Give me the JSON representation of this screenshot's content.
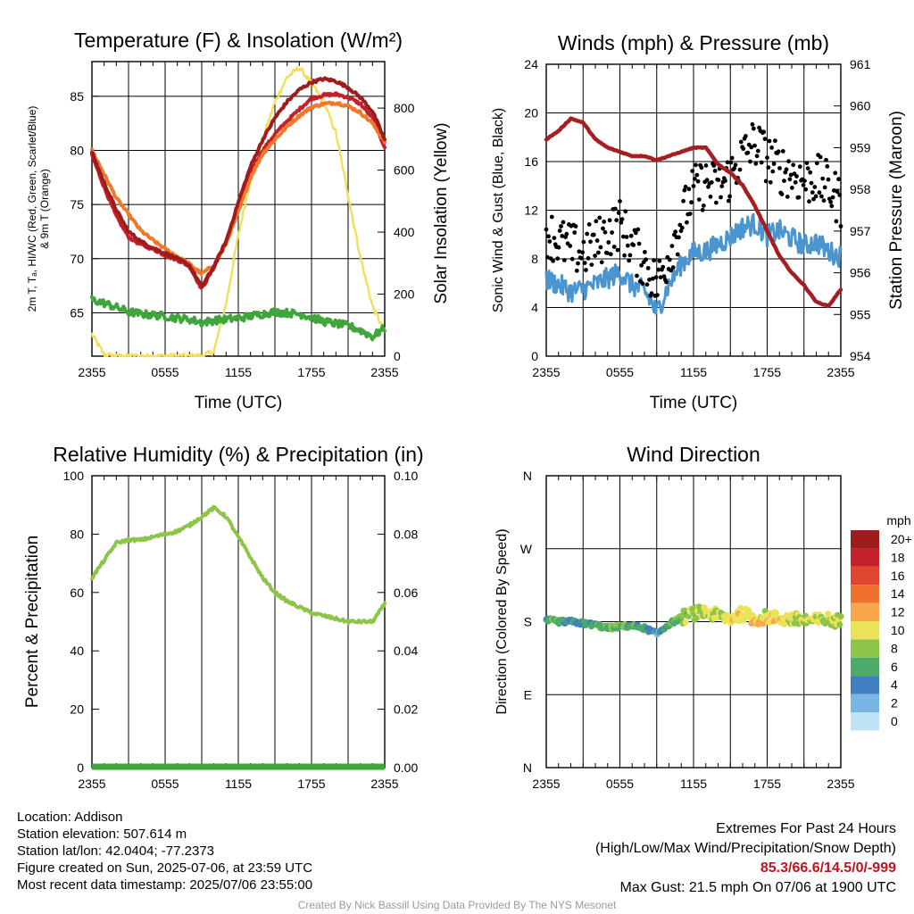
{
  "chart_data": [
    {
      "type": "line",
      "title": "Temperature (F) & Insolation (W/m²)",
      "xlabel": "Time (UTC)",
      "ylabel_lines": [
        "2m T, Tₐ, HI/WC (Red, Green, Scarlet/Blue)",
        "& 9m T (Orange)"
      ],
      "ylabel2": "Solar Insolation (Yellow)",
      "xticks": [
        "2355",
        "0555",
        "1155",
        "1755",
        "2355"
      ],
      "yticks": [
        65,
        70,
        75,
        80,
        85
      ],
      "y2ticks": [
        0,
        200,
        400,
        600,
        800
      ],
      "ylim": [
        61,
        88.2
      ],
      "y2lim": [
        0,
        950
      ],
      "x": [
        0,
        1,
        2,
        3,
        4,
        5,
        6,
        7,
        8,
        9,
        10,
        11,
        12,
        13,
        14,
        15,
        16,
        17,
        18,
        19,
        20,
        21,
        22,
        23,
        24
      ],
      "series": [
        {
          "color": "#c4202a",
          "values": [
            79.6,
            76.6,
            73.9,
            72.0,
            71.3,
            70.9,
            70.3,
            69.9,
            69.3,
            67.2,
            69.2,
            71.5,
            75.0,
            78.0,
            80.0,
            81.5,
            82.7,
            83.8,
            84.8,
            85.1,
            85.2,
            84.9,
            84.3,
            83.0,
            80.3
          ]
        },
        {
          "color": "#f0782a",
          "values": [
            80.0,
            77.8,
            75.6,
            74.1,
            72.6,
            71.7,
            70.9,
            70.2,
            69.5,
            68.6,
            69.4,
            71.4,
            74.3,
            77.5,
            79.7,
            81.0,
            82.2,
            83.2,
            84.0,
            84.3,
            84.4,
            84.1,
            83.5,
            82.5,
            80.8
          ]
        },
        {
          "color": "#9e1c1c",
          "values": [
            79.8,
            77.0,
            74.5,
            72.5,
            71.6,
            71.0,
            70.5,
            70.0,
            69.4,
            67.4,
            69.3,
            71.6,
            75.2,
            78.5,
            81.0,
            83.0,
            84.5,
            85.6,
            86.3,
            86.6,
            86.4,
            85.8,
            84.9,
            83.6,
            81.0
          ]
        },
        {
          "color": "#3ea63a",
          "values": [
            66.2,
            65.9,
            65.5,
            65.1,
            64.9,
            64.8,
            64.7,
            64.5,
            64.4,
            64.1,
            64.3,
            64.4,
            64.5,
            64.7,
            64.9,
            65.1,
            65.0,
            64.9,
            64.6,
            64.2,
            64.0,
            63.8,
            63.4,
            62.8,
            63.6
          ]
        }
      ],
      "insolation": {
        "color": "#f4df5a",
        "values": [
          70,
          5,
          0,
          0,
          0,
          0,
          0,
          0,
          0,
          0,
          15,
          170,
          390,
          570,
          700,
          820,
          900,
          930,
          880,
          820,
          720,
          520,
          320,
          160,
          80
        ]
      }
    },
    {
      "type": "line",
      "title": "Winds (mph) & Pressure (mb)",
      "xlabel": "Time (UTC)",
      "ylabel": "Sonic Wind & Gust (Blue, Black)",
      "ylabel2": "Station Pressure (Maroon)",
      "xticks": [
        "2355",
        "0555",
        "1155",
        "1755",
        "2355"
      ],
      "yticks": [
        0,
        4,
        8,
        12,
        16,
        20,
        24
      ],
      "y2ticks": [
        954,
        955,
        956,
        957,
        958,
        959,
        960,
        961
      ],
      "ylim": [
        0,
        24
      ],
      "y2lim": [
        954,
        961
      ],
      "x": [
        0,
        1,
        2,
        3,
        4,
        5,
        6,
        7,
        8,
        9,
        10,
        11,
        12,
        13,
        14,
        15,
        16,
        17,
        18,
        19,
        20,
        21,
        22,
        23,
        24
      ],
      "wind": {
        "color": "#4a95d0",
        "values": [
          6.3,
          5.9,
          5.3,
          5.5,
          5.9,
          6.4,
          6.9,
          5.8,
          5.4,
          3.6,
          5.9,
          7.6,
          8.5,
          8.6,
          9.2,
          9.8,
          10.6,
          10.9,
          9.9,
          10.3,
          9.7,
          9.1,
          9.4,
          8.6,
          8.2
        ]
      },
      "gust": {
        "color": "#000000",
        "values": [
          10.3,
          9.4,
          8.9,
          8.5,
          9.2,
          10.1,
          10.9,
          9.0,
          7.7,
          5.8,
          8.4,
          11.2,
          13.6,
          14.2,
          13.8,
          14.8,
          16.4,
          17.6,
          16.3,
          15.4,
          15.0,
          14.4,
          14.6,
          13.9,
          12.6
        ]
      },
      "pressure": {
        "color": "#a51e22",
        "values": [
          959.2,
          959.4,
          959.7,
          959.6,
          959.2,
          959.0,
          958.9,
          958.8,
          958.8,
          958.7,
          958.8,
          958.9,
          959.0,
          959.0,
          958.6,
          958.4,
          958.1,
          957.6,
          957.0,
          956.4,
          956.0,
          955.7,
          955.3,
          955.2,
          955.6
        ]
      }
    },
    {
      "type": "line",
      "title": "Relative Humidity (%) & Precipitation (in)",
      "ylabel": "Percent & Precipitation",
      "xticks": [
        "2355",
        "0555",
        "1155",
        "1755",
        "2355"
      ],
      "yticks": [
        0,
        20,
        40,
        60,
        80,
        100
      ],
      "y2ticks": [
        "0.00",
        "0.02",
        "0.04",
        "0.06",
        "0.08",
        "0.10"
      ],
      "ylim": [
        0,
        100
      ],
      "y2lim": [
        0,
        0.1
      ],
      "x": [
        0,
        1,
        2,
        3,
        4,
        5,
        6,
        7,
        8,
        9,
        10,
        11,
        12,
        13,
        14,
        15,
        16,
        17,
        18,
        19,
        20,
        21,
        22,
        23,
        24
      ],
      "series": [
        {
          "color": "#8cc54a",
          "values": [
            65,
            71,
            77,
            78,
            78,
            79,
            80,
            81,
            83,
            86,
            89,
            86,
            79,
            72,
            65,
            60,
            57,
            55,
            53,
            52,
            51,
            50,
            50,
            50,
            56
          ]
        },
        {
          "color": "#3ea63a",
          "values": [
            0,
            0,
            0,
            0,
            0,
            0,
            0,
            0,
            0,
            0,
            0,
            0,
            0,
            0,
            0,
            0,
            0,
            0,
            0,
            0,
            0,
            0,
            0,
            0,
            0
          ]
        }
      ]
    },
    {
      "type": "scatter",
      "title": "Wind Direction",
      "ylabel": "Direction (Colored By Speed)",
      "xticks": [
        "2355",
        "0555",
        "1155",
        "1755",
        "2355"
      ],
      "yticks": [
        "N",
        "E",
        "S",
        "W",
        "N"
      ],
      "ylim": [
        0,
        360
      ],
      "x": [
        0,
        1,
        2,
        3,
        4,
        5,
        6,
        7,
        8,
        9,
        10,
        11,
        12,
        13,
        14,
        15,
        16,
        17,
        18,
        19,
        20,
        21,
        22,
        23,
        24
      ],
      "direction": [
        182,
        180,
        180,
        178,
        176,
        172,
        174,
        175,
        172,
        165,
        177,
        185,
        190,
        192,
        187,
        184,
        190,
        183,
        186,
        184,
        183,
        182,
        181,
        183,
        180
      ],
      "speed": [
        6.3,
        5.9,
        5.3,
        5.5,
        5.9,
        6.4,
        6.9,
        5.8,
        5.4,
        3.6,
        5.9,
        7.6,
        8.5,
        8.6,
        9.2,
        9.8,
        10.6,
        10.9,
        9.9,
        10.3,
        9.7,
        9.1,
        9.4,
        8.6,
        8.2
      ],
      "colorbar": {
        "title": "mph",
        "labels": [
          "20+",
          "18",
          "16",
          "14",
          "12",
          "10",
          "8",
          "6",
          "4",
          "2",
          "0"
        ],
        "colors": [
          "#9e1c1c",
          "#c4202a",
          "#e04531",
          "#f07030",
          "#f8a84a",
          "#ece25a",
          "#8cc54a",
          "#4caa6a",
          "#3f7fc0",
          "#7ab6e3",
          "#bfe2f6"
        ]
      }
    }
  ],
  "info": {
    "location": "Location: Addison",
    "elevation": "Station elevation: 507.614 m",
    "latlon": "Station lat/lon: 42.0404; -77.2373",
    "created": "Figure created on Sun, 2025-07-06, at 23:59 UTC",
    "recent": "Most recent data timestamp: 2025/07/06 23:55:00"
  },
  "extremes": {
    "title": "Extremes For Past 24 Hours",
    "subtitle": "(High/Low/Max Wind/Precipitation/Snow Depth)",
    "values": "85.3/66.6/14.5/0/-999",
    "gust": "Max Gust: 21.5 mph On 07/06 at 1900 UTC"
  },
  "credit": "Created By Nick Bassill Using Data Provided By The NYS Mesonet"
}
